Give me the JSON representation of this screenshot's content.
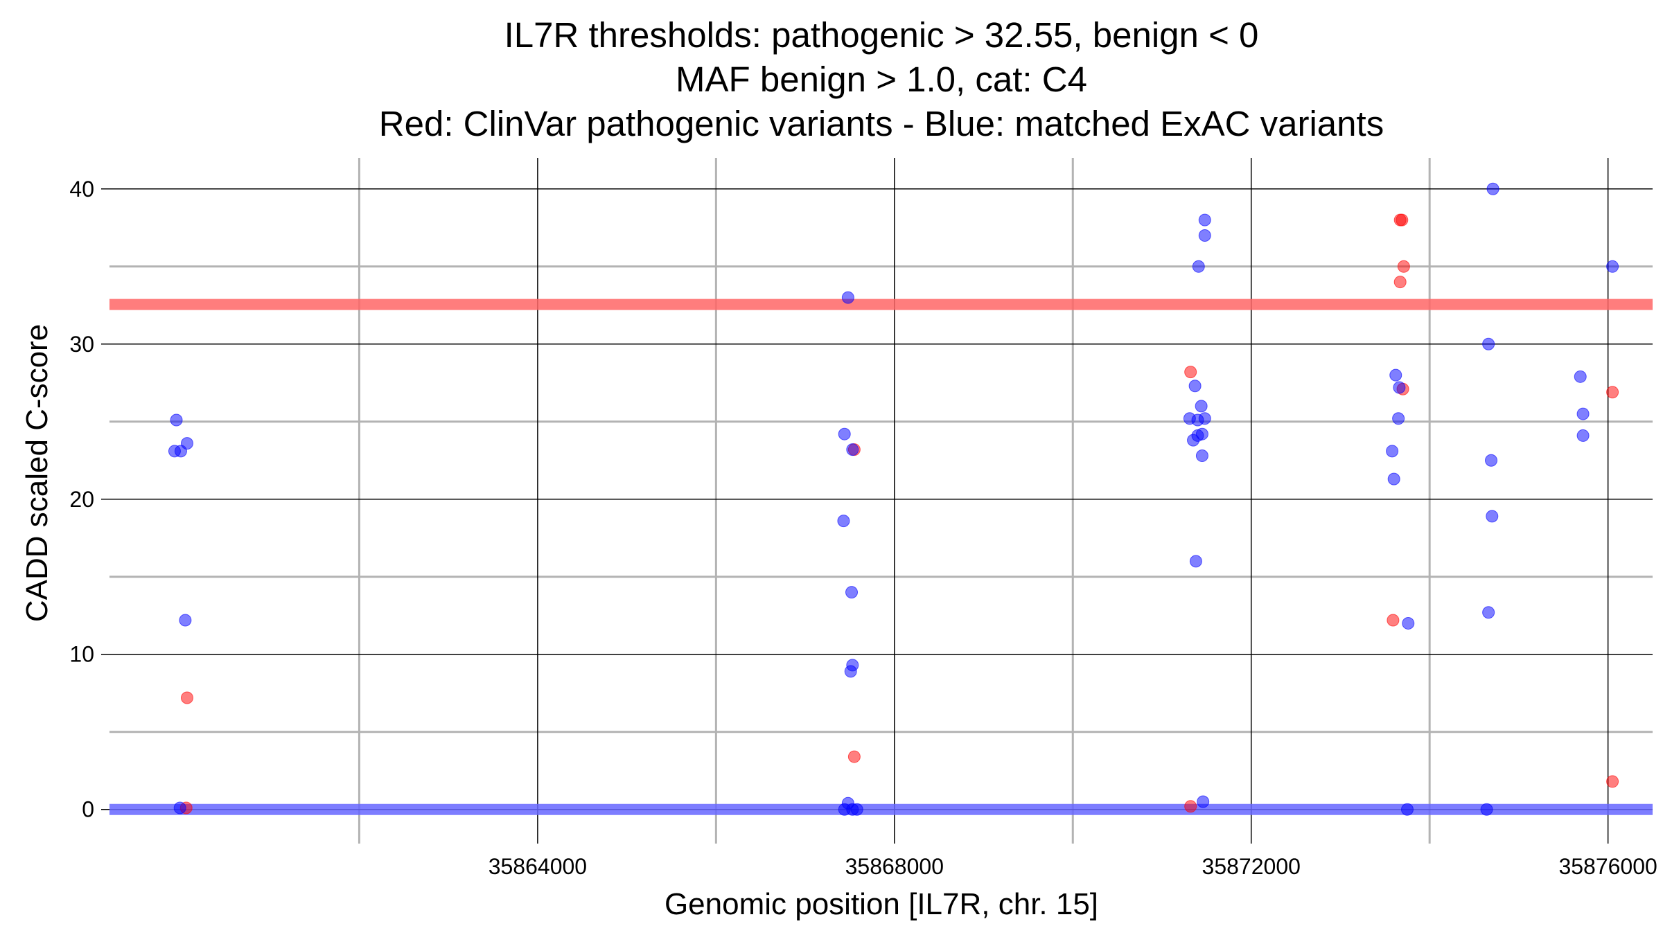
{
  "chart_data": {
    "type": "scatter",
    "title_lines": [
      "IL7R thresholds: pathogenic > 32.55, benign < 0",
      "MAF benign > 1.0, cat: C4",
      "Red: ClinVar pathogenic variants - Blue: matched ExAC variants"
    ],
    "xlabel": "Genomic position [IL7R, chr. 15]",
    "ylabel": "CADD scaled C-score",
    "xlim": [
      35859200,
      35876500
    ],
    "ylim": [
      -2.2,
      42
    ],
    "x_ticks": [
      35864000,
      35868000,
      35872000,
      35876000
    ],
    "x_tick_labels": [
      "35864000",
      "35868000",
      "35872000",
      "35876000"
    ],
    "x_minor_gridlines": [
      35862000,
      35866000,
      35870000,
      35874000
    ],
    "y_ticks": [
      0,
      10,
      20,
      30,
      40
    ],
    "y_tick_labels": [
      "0",
      "10",
      "20",
      "30",
      "40"
    ],
    "y_minor_gridlines": [
      5,
      15,
      25,
      35
    ],
    "grid": true,
    "thresholds": [
      {
        "name": "pathogenic",
        "value": 32.55,
        "color": "#ff6666"
      },
      {
        "name": "benign",
        "value": 0,
        "color": "#6666ff"
      }
    ],
    "colors": {
      "pathogenic": "#ff0000",
      "benign": "#0000ff"
    },
    "series": [
      {
        "name": "ClinVar pathogenic variants",
        "color": "#ff0000",
        "points": [
          [
            35860070,
            7.2
          ],
          [
            35860060,
            0.1
          ],
          [
            35867550,
            23.2
          ],
          [
            35867550,
            3.4
          ],
          [
            35871320,
            28.2
          ],
          [
            35871320,
            0.2
          ],
          [
            35873670,
            38.0
          ],
          [
            35873690,
            38.0
          ],
          [
            35873710,
            35.0
          ],
          [
            35873670,
            34.0
          ],
          [
            35873700,
            27.1
          ],
          [
            35873590,
            12.2
          ],
          [
            35876050,
            26.9
          ],
          [
            35876050,
            1.8
          ]
        ]
      },
      {
        "name": "matched ExAC variants",
        "color": "#0000ff",
        "points": [
          [
            35859950,
            25.1
          ],
          [
            35859930,
            23.1
          ],
          [
            35860000,
            23.1
          ],
          [
            35860070,
            23.6
          ],
          [
            35860050,
            12.2
          ],
          [
            35859990,
            0.1
          ],
          [
            35867480,
            33.0
          ],
          [
            35867440,
            24.2
          ],
          [
            35867530,
            23.2
          ],
          [
            35867430,
            18.6
          ],
          [
            35867520,
            14.0
          ],
          [
            35867530,
            9.3
          ],
          [
            35867510,
            8.9
          ],
          [
            35867480,
            0.4
          ],
          [
            35867440,
            0.0
          ],
          [
            35867530,
            0.0
          ],
          [
            35867580,
            0.0
          ],
          [
            35871480,
            38.0
          ],
          [
            35871480,
            37.0
          ],
          [
            35871410,
            35.0
          ],
          [
            35871370,
            27.3
          ],
          [
            35871440,
            26.0
          ],
          [
            35871310,
            25.2
          ],
          [
            35871400,
            25.1
          ],
          [
            35871480,
            25.2
          ],
          [
            35871400,
            24.1
          ],
          [
            35871450,
            24.2
          ],
          [
            35871350,
            23.8
          ],
          [
            35871450,
            22.8
          ],
          [
            35871380,
            16.0
          ],
          [
            35871460,
            0.5
          ],
          [
            35873620,
            28.0
          ],
          [
            35873660,
            27.2
          ],
          [
            35873650,
            25.2
          ],
          [
            35873580,
            23.1
          ],
          [
            35873600,
            21.3
          ],
          [
            35873760,
            12.0
          ],
          [
            35873750,
            0.0
          ],
          [
            35874710,
            40.0
          ],
          [
            35874660,
            30.0
          ],
          [
            35874690,
            22.5
          ],
          [
            35874700,
            18.9
          ],
          [
            35874660,
            12.7
          ],
          [
            35874640,
            0.0
          ],
          [
            35875690,
            27.9
          ],
          [
            35875720,
            25.5
          ],
          [
            35875720,
            24.1
          ],
          [
            35876050,
            35.0
          ]
        ]
      }
    ]
  }
}
